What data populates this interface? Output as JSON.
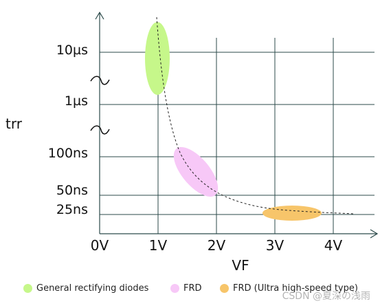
{
  "diagram": {
    "y_axis_label": "trr",
    "x_axis_label": "VF",
    "y_ticks": [
      "10µs",
      "1µs",
      "100ns",
      "50ns",
      "25ns"
    ],
    "x_ticks": [
      "0V",
      "1V",
      "2V",
      "3V",
      "4V"
    ],
    "regions": [
      {
        "name": "General rectifying diodes",
        "color": "#c6f78a"
      },
      {
        "name": "FRD",
        "color": "#f7c8f7"
      },
      {
        "name": "FRD (Ultra high-speed type)",
        "color": "#f7c56a"
      }
    ]
  },
  "legend": [
    {
      "label": "General rectifying diodes",
      "color": "#c6f78a"
    },
    {
      "label": "FRD",
      "color": "#f7c8f7"
    },
    {
      "label": "FRD (Ultra high-speed type)",
      "color": "#f7c56a"
    }
  ],
  "watermark": "CSDN @夏深の浅雨"
}
